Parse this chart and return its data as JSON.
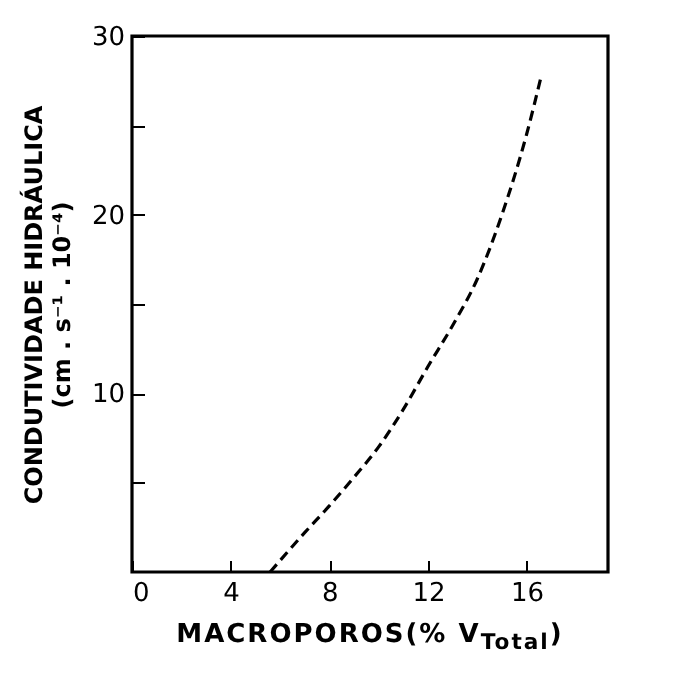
{
  "chart_data": {
    "type": "line",
    "xlabel": "MACROPOROS(% V$_{Total}$)",
    "ylabel": [
      "CONDUTIVIDADE HIDRÁULICA",
      "(cm . s⁻¹ . 10⁻⁴)"
    ],
    "x": [
      5.6,
      7,
      8,
      9,
      10,
      11,
      12,
      13,
      14,
      15,
      16,
      16.6
    ],
    "series": [
      {
        "color": "#000000",
        "values": [
          0,
          2.2,
          3.7,
          5.3,
          7.0,
          9.1,
          11.5,
          13.8,
          16.4,
          20.0,
          24.5,
          27.8
        ]
      }
    ],
    "xlim": [
      0,
      19.3
    ],
    "ylim": [
      0,
      30
    ],
    "xticks": [
      0,
      4,
      8,
      12,
      16
    ],
    "yticks": [
      {
        "value": 5,
        "label": null
      },
      10,
      {
        "value": 15,
        "label": null
      },
      20,
      {
        "value": 25,
        "label": null
      },
      30
    ],
    "line_style": "dashed"
  }
}
